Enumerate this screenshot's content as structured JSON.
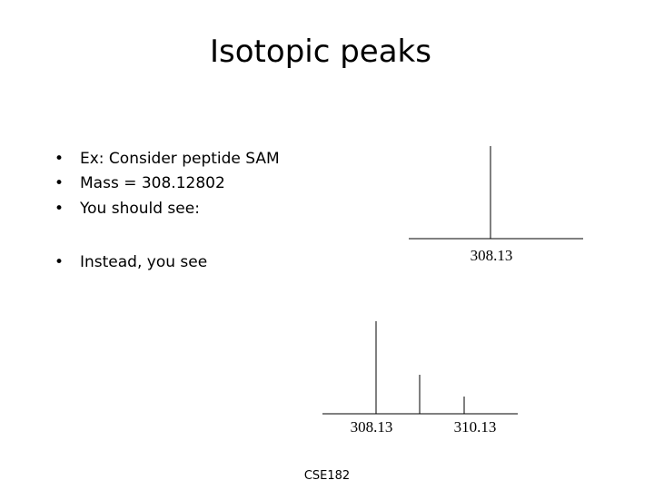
{
  "title": "Isotopic peaks",
  "bullets": [
    "Ex: Consider peptide SAM",
    "Mass = 308.12802",
    "You should see:",
    "Instead, you see"
  ],
  "figure_expected": {
    "labels": [
      "308.13"
    ]
  },
  "figure_observed": {
    "labels": [
      "308.13",
      "310.13"
    ]
  },
  "footer": "CSE182"
}
